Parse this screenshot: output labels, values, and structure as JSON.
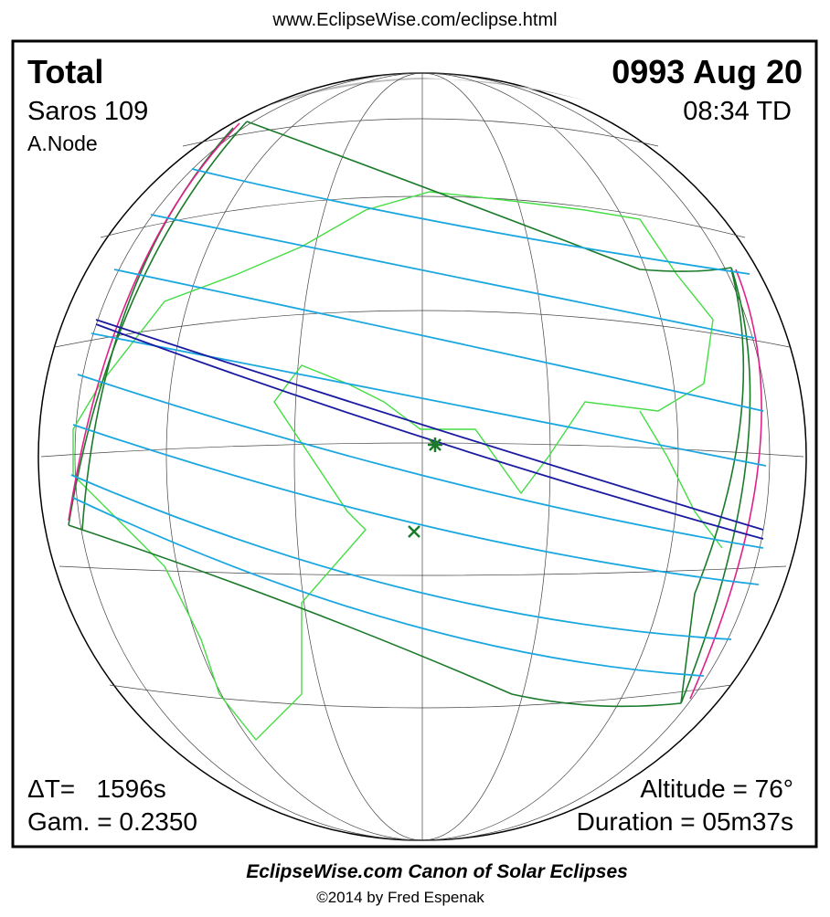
{
  "header": {
    "url": "www.EclipseWise.com/eclipse.html"
  },
  "panel": {
    "type": "Total",
    "date": "0993 Aug 20",
    "saros": "Saros 109",
    "time": "08:34 TD",
    "node": "A.Node",
    "delta_t": "ΔT=   1596s",
    "gamma": "Gam. = 0.2350",
    "altitude": "Altitude = 76°",
    "duration": "Duration = 05m37s"
  },
  "footer": {
    "title": "EclipseWise.com Canon of Solar Eclipses",
    "copyright": "©2014 by Fred Espenak"
  }
}
